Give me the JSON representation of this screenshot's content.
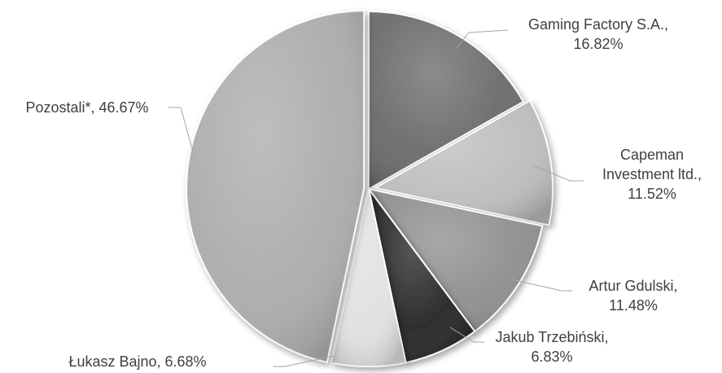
{
  "chart_data": {
    "type": "pie",
    "start_angle_deg": 0,
    "direction": "clockwise",
    "slices": [
      {
        "name": "Gaming Factory S.A.",
        "value": 16.82,
        "color": "#6b6b6b",
        "label_lines": [
          "Gaming Factory S.A.,",
          "16.82%"
        ]
      },
      {
        "name": "Capeman Investment ltd.",
        "value": 11.52,
        "color": "#bdbdbd",
        "label_lines": [
          "Capeman",
          "Investment ltd.,",
          "11.52%"
        ]
      },
      {
        "name": "Artur Gdulski",
        "value": 11.48,
        "color": "#8f8f8f",
        "label_lines": [
          "Artur Gdulski,",
          "11.48%"
        ]
      },
      {
        "name": "Jakub Trzebiński",
        "value": 6.83,
        "color": "#262626",
        "label_lines": [
          "Jakub Trzebiński,",
          "6.83%"
        ]
      },
      {
        "name": "Łukasz Bajno",
        "value": 6.68,
        "color": "#e0e0e0",
        "label_lines": [
          "Łukasz Bajno, 6.68%"
        ]
      },
      {
        "name": "Pozostali*",
        "value": 46.67,
        "color": "#acacac",
        "label_lines": [
          "Pozostali*, 46.67%"
        ]
      }
    ]
  }
}
